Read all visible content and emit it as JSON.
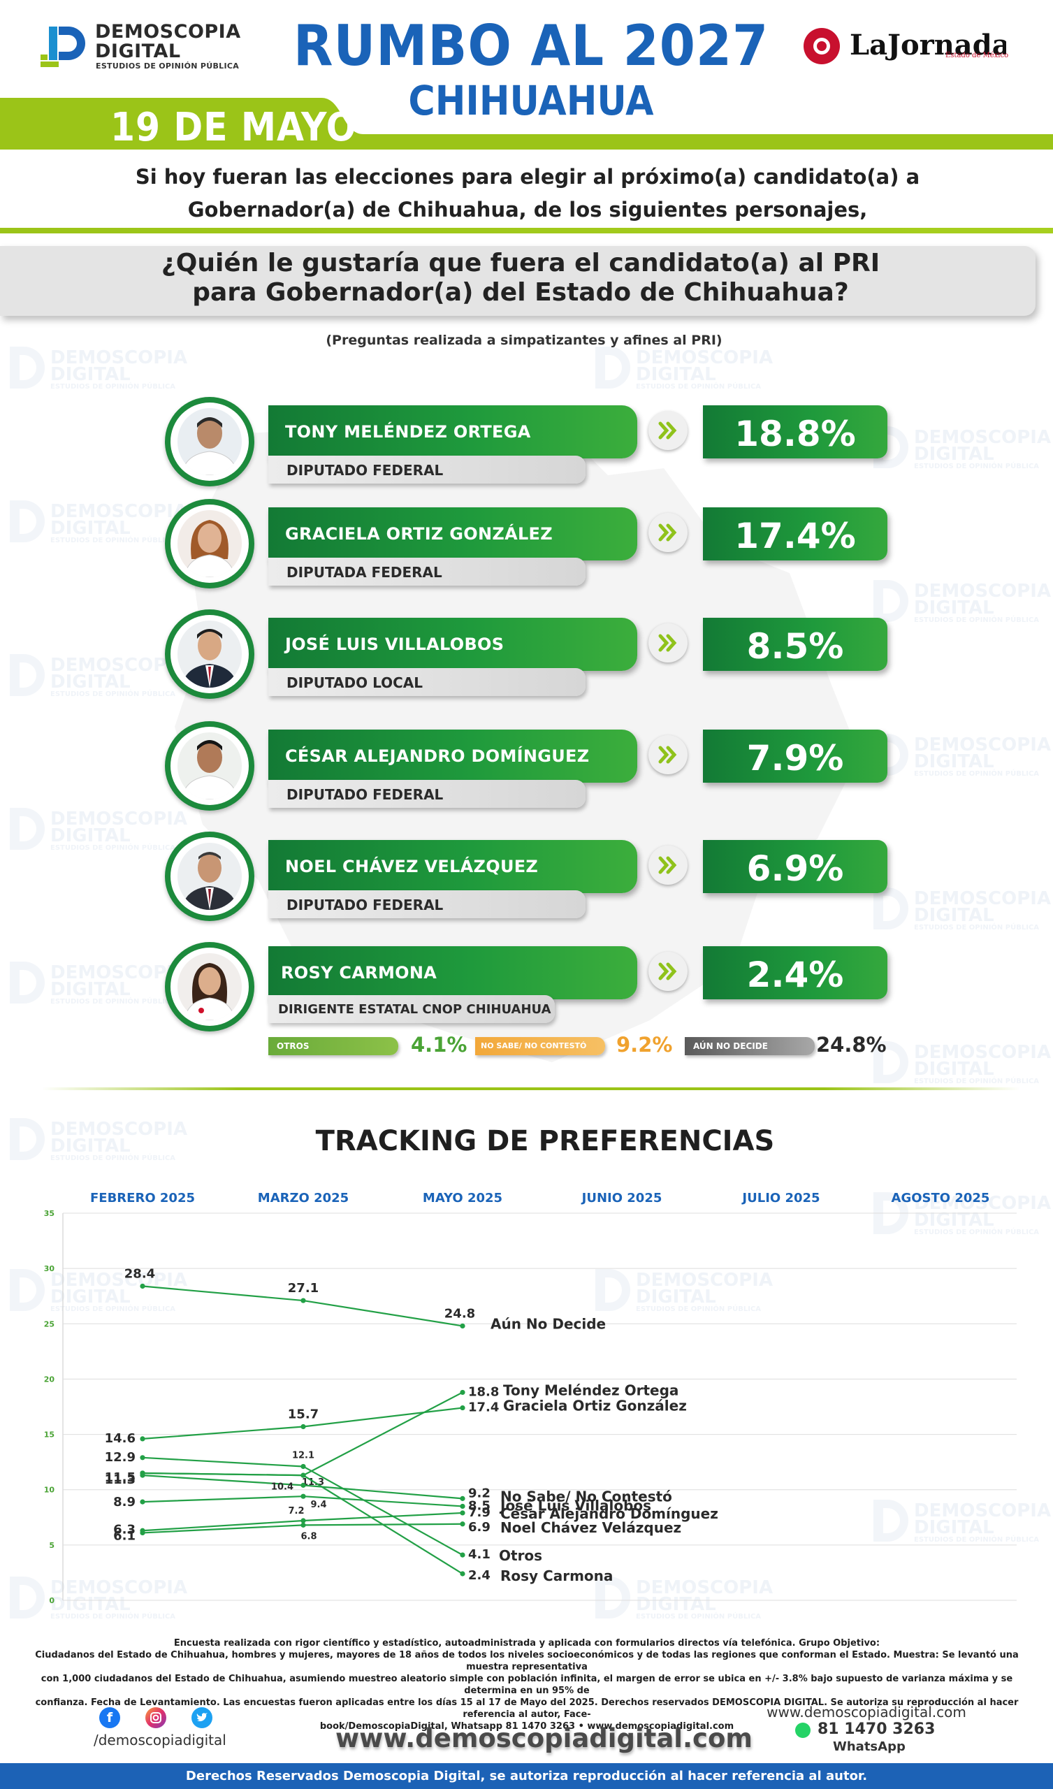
{
  "header": {
    "brand_name_line1": "DEMOSCOPIA",
    "brand_name_line2": "DIGITAL",
    "brand_tagline": "ESTUDIOS DE OPINIÓN PÚBLICA",
    "title": "RUMBO AL 2027",
    "subtitle": "CHIHUAHUA",
    "partner_logo_text": "LaJornada",
    "partner_logo_sub": "Estado de México",
    "date": "19 DE MAYO",
    "colors": {
      "title_blue": "#1a63b8",
      "lime": "#9bc418",
      "green": "#1f9a3c",
      "red": "#c8102e"
    }
  },
  "intro": {
    "line1": "Si hoy fueran las elecciones para elegir al próximo(a) candidato(a) a",
    "line2": "Gobernador(a) de Chihuahua, de los siguientes personajes,"
  },
  "question": {
    "line1": "¿Quién le gustaría que fuera el candidato(a) al PRI",
    "line2": "para Gobernador(a) del Estado de Chihuahua?",
    "note": "(Preguntas realizada a simpatizantes y afines al PRI)"
  },
  "candidates": [
    {
      "name": "TONY MELÉNDEZ ORTEGA",
      "role": "DIPUTADO FEDERAL",
      "percent": "18.8%"
    },
    {
      "name": "GRACIELA ORTIZ GONZÁLEZ",
      "role": "DIPUTADA FEDERAL",
      "percent": "17.4%"
    },
    {
      "name": "JOSÉ LUIS VILLALOBOS",
      "role": "DIPUTADO LOCAL",
      "percent": "8.5%"
    },
    {
      "name": "CÉSAR ALEJANDRO DOMÍNGUEZ",
      "role": "DIPUTADO FEDERAL",
      "percent": "7.9%"
    },
    {
      "name": "NOEL CHÁVEZ VELÁZQUEZ",
      "role": "DIPUTADO FEDERAL",
      "percent": "6.9%"
    },
    {
      "name": "ROSY CARMONA",
      "role": "DIRIGENTE ESTATAL CNOP CHIHUAHUA",
      "percent": "2.4%"
    }
  ],
  "others": [
    {
      "label": "OTROS",
      "value": "4.1%",
      "color": "#6aab3a"
    },
    {
      "label": "NO SABE/ NO CONTESTÓ",
      "value": "9.2%",
      "color": "#f2a83a"
    },
    {
      "label": "AÚN NO DECIDE",
      "value": "24.8%",
      "color": "#6e6e6e"
    }
  ],
  "tracking": {
    "title": "TRACKING DE PREFERENCIAS"
  },
  "chart_data": {
    "type": "line",
    "title": "TRACKING DE PREFERENCIAS",
    "x": [
      "FEBRERO 2025",
      "MARZO 2025",
      "MAYO 2025",
      "JUNIO 2025",
      "JULIO 2025",
      "AGOSTO 2025"
    ],
    "ylim": [
      0,
      35
    ],
    "yticks": [
      0,
      5,
      10,
      15,
      20,
      25,
      30,
      35
    ],
    "grid": true,
    "series": [
      {
        "name": "Aún No Decide",
        "values": [
          28.4,
          27.1,
          24.8,
          null,
          null,
          null
        ]
      },
      {
        "name": "Tony Meléndez Ortega",
        "values": [
          11.5,
          11.3,
          18.8,
          null,
          null,
          null
        ]
      },
      {
        "name": "Graciela Ortiz González",
        "values": [
          14.6,
          15.7,
          17.4,
          null,
          null,
          null
        ]
      },
      {
        "name": "No Sabe/ No Contestó",
        "values": [
          11.3,
          10.4,
          9.2,
          null,
          null,
          null
        ]
      },
      {
        "name": "José Luis Villalobos",
        "values": [
          8.9,
          9.4,
          8.5,
          null,
          null,
          null
        ]
      },
      {
        "name": "César Alejandro Domínguez",
        "values": [
          6.3,
          7.2,
          7.9,
          null,
          null,
          null
        ]
      },
      {
        "name": "Noel Chávez Velázquez",
        "values": [
          6.1,
          6.8,
          6.9,
          null,
          null,
          null
        ]
      },
      {
        "name": "Otros",
        "values": [
          12.9,
          12.1,
          4.1,
          null,
          null,
          null
        ]
      },
      {
        "name": "Rosy Carmona",
        "values": [
          11.5,
          11.3,
          2.4,
          null,
          null,
          null
        ]
      }
    ],
    "line_color": "#22a046"
  },
  "footer": {
    "footnote_line1": "Encuesta realizada con rigor científico y estadístico, autoadministrada y aplicada con formularios directos vía telefónica. Grupo Objetivo:",
    "footnote_line2": "Ciudadanos del Estado de Chihuahua, hombres y mujeres, mayores de 18 años de todos los niveles socioeconómicos y de todas las regiones que conforman el Estado. Muestra: Se levantó una muestra representativa",
    "footnote_line3": "con 1,000 ciudadanos del Estado de Chihuahua, asumiendo muestreo aleatorio simple con población infinita, el margen de error se ubica en +/- 3.8% bajo supuesto de varianza máxima y se determina en un 95% de",
    "footnote_line4": "confianza. Fecha de Levantamiento. Las encuestas fueron aplicadas entre los días 15 al 17 de Mayo del 2025. Derechos reservados DEMOSCOPIA DIGITAL. Se autoriza su reproducción al hacer referencia al autor, Face-",
    "footnote_line5": "book/DemoscopiaDigital, Whatsapp 81 1470 3263 • www.demoscopiadigital.com",
    "social_handle": "/demoscopiadigital",
    "website_main": "www.demoscopiadigital.com",
    "website_small": "www.demoscopiadigital.com",
    "phone": "81 1470 3263",
    "whatsapp_label": "WhatsApp",
    "rights": "Derechos Reservados Demoscopia Digital, se autoriza reproducción al hacer referencia al autor."
  }
}
